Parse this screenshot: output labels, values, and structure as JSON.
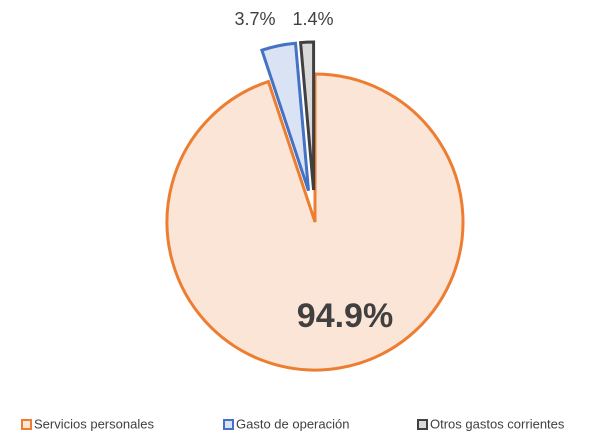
{
  "chart_data": {
    "type": "pie",
    "categories": [
      "Servicios personales",
      "Gasto de operación",
      "Otros gastos corrientes"
    ],
    "values": [
      94.9,
      3.7,
      1.4
    ],
    "value_labels": [
      "94.9%",
      "3.7%",
      "1.4%"
    ],
    "colors": [
      "#fbe5d6",
      "#dae3f3",
      "#d9d9d9"
    ],
    "edge_colors": [
      "#ed7d31",
      "#4472c4",
      "#404040"
    ]
  }
}
